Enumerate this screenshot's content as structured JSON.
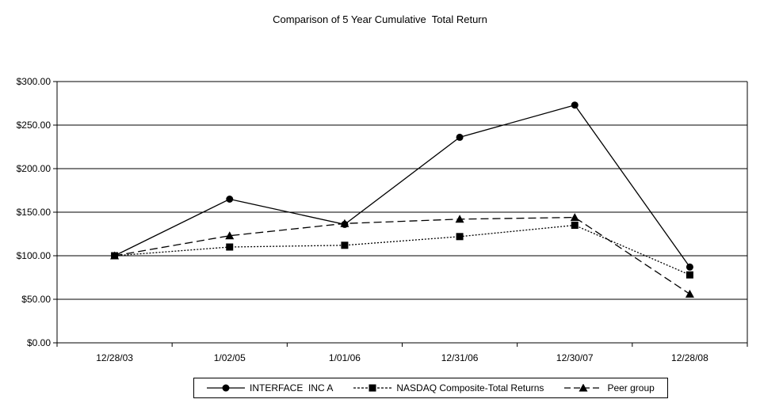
{
  "title": "Comparison of 5 Year Cumulative  Total Return",
  "chart_data": {
    "type": "line",
    "title": "Comparison of 5 Year Cumulative  Total Return",
    "categories": [
      "12/28/03",
      "1/02/05",
      "1/01/06",
      "12/31/06",
      "12/30/07",
      "12/28/08"
    ],
    "series": [
      {
        "name": "INTERFACE  INC A",
        "marker": "circle",
        "line": "solid",
        "values": [
          100,
          165,
          136,
          236,
          273,
          87
        ]
      },
      {
        "name": "NASDAQ Composite-Total Returns",
        "marker": "square",
        "line": "dotted",
        "values": [
          100,
          110,
          112,
          122,
          135,
          78
        ]
      },
      {
        "name": "Peer group",
        "marker": "triangle",
        "line": "dashed",
        "values": [
          100,
          123,
          137,
          142,
          144,
          56
        ]
      }
    ],
    "y_ticks": [
      {
        "label": "$300.00",
        "value": 300
      },
      {
        "label": "$250.00",
        "value": 250
      },
      {
        "label": "$200.00",
        "value": 200
      },
      {
        "label": "$150.00",
        "value": 150
      },
      {
        "label": "$100.00",
        "value": 100
      },
      {
        "label": "$50.00",
        "value": 50
      },
      {
        "label": "$0.00",
        "value": 0
      }
    ],
    "ylim": [
      0,
      300
    ],
    "y_step": 50,
    "grid": "horizontal",
    "legend_position": "bottom",
    "colors": {
      "line": "#000000",
      "background": "#ffffff",
      "text": "#000000"
    }
  }
}
